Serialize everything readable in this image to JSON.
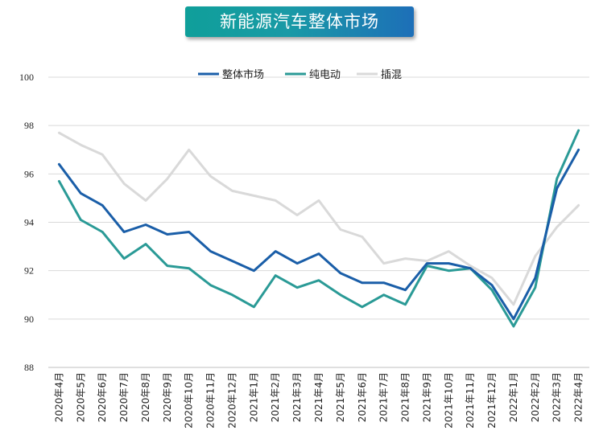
{
  "title": "新能源汽车整体市场",
  "chart_data": {
    "type": "line",
    "title": "新能源汽车整体市场",
    "xlabel": "",
    "ylabel": "",
    "ylim": [
      88,
      100
    ],
    "yticks": [
      88,
      90,
      92,
      94,
      96,
      98,
      100
    ],
    "grid": true,
    "legend_position": "top-center",
    "categories": [
      "2020年4月",
      "2020年5月",
      "2020年6月",
      "2020年7月",
      "2020年8月",
      "2020年9月",
      "2020年10月",
      "2020年11月",
      "2020年12月",
      "2021年1月",
      "2021年2月",
      "2021年3月",
      "2021年4月",
      "2021年5月",
      "2021年6月",
      "2021年7月",
      "2021年8月",
      "2021年9月",
      "2021年10月",
      "2021年11月",
      "2021年12月",
      "2022年1月",
      "2022年2月",
      "2022年3月",
      "2022年4月"
    ],
    "series": [
      {
        "name": "整体市场",
        "color": "#1a5ea8",
        "values": [
          96.4,
          95.2,
          94.7,
          93.6,
          93.9,
          93.5,
          93.6,
          92.8,
          92.4,
          92.0,
          92.8,
          92.3,
          92.7,
          91.9,
          91.5,
          91.5,
          91.2,
          92.3,
          92.3,
          92.1,
          91.4,
          90.0,
          91.7,
          95.4,
          97.0
        ]
      },
      {
        "name": "纯电动",
        "color": "#2a9a96",
        "values": [
          95.7,
          94.1,
          93.6,
          92.5,
          93.1,
          92.2,
          92.1,
          91.4,
          91.0,
          90.5,
          91.8,
          91.3,
          91.6,
          91.0,
          90.5,
          91.0,
          90.6,
          92.2,
          92.0,
          92.1,
          91.2,
          89.7,
          91.3,
          95.8,
          97.8
        ]
      },
      {
        "name": "插混",
        "color": "#d9d9d9",
        "values": [
          97.7,
          97.2,
          96.8,
          95.6,
          94.9,
          95.8,
          97.0,
          95.9,
          95.3,
          95.1,
          94.9,
          94.3,
          94.9,
          93.7,
          93.4,
          92.3,
          92.5,
          92.4,
          92.8,
          92.2,
          91.7,
          90.6,
          92.6,
          93.8,
          94.7
        ]
      }
    ]
  }
}
